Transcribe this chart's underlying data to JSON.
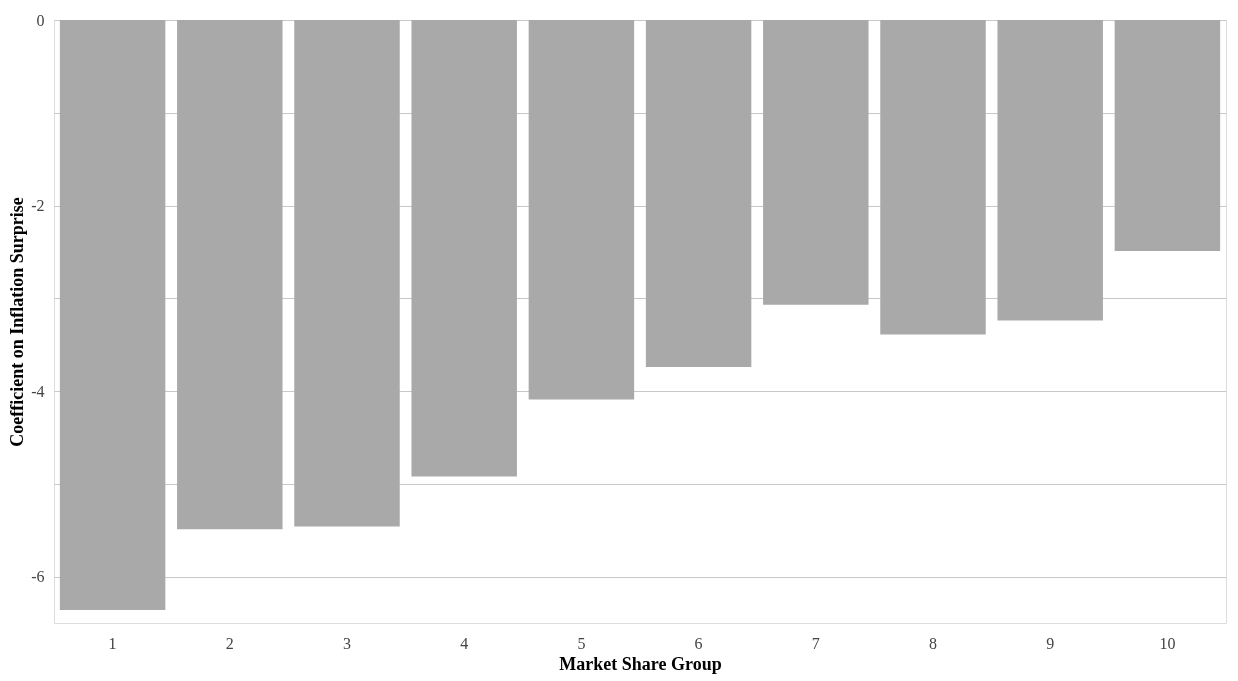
{
  "chart_data": {
    "type": "bar",
    "xlabel": "Market Share Group",
    "ylabel": "Coefficient on Inflation Surprise",
    "categories": [
      "1",
      "2",
      "3",
      "4",
      "5",
      "6",
      "7",
      "8",
      "9",
      "10"
    ],
    "values": [
      -6.36,
      -5.49,
      -5.46,
      -4.92,
      -4.09,
      -3.74,
      -3.07,
      -3.39,
      -3.24,
      -2.49
    ],
    "color": "#a9a9a9",
    "ylim": [
      -6.5,
      0
    ],
    "yticks": [
      0,
      {
        "value": -1,
        "label": null
      },
      -2,
      {
        "value": -3,
        "label": null
      },
      -4,
      {
        "value": -5,
        "label": null
      },
      -6
    ],
    "grid": "y"
  }
}
